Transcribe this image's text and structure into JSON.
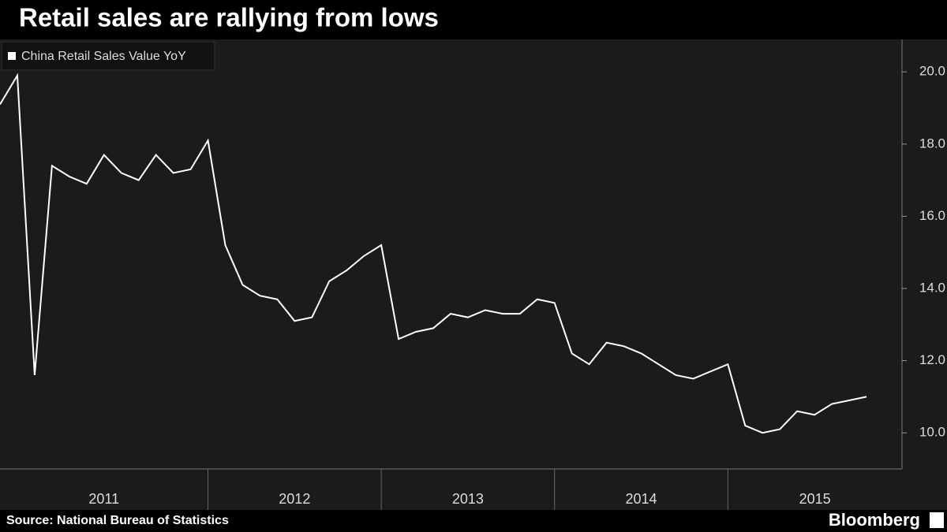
{
  "chart_data": {
    "type": "line",
    "title": "Retail sales are rallying from lows",
    "source": "Source: National Bureau of Statistics",
    "brand": "Bloomberg",
    "year_labels": [
      "2011",
      "2012",
      "2013",
      "2014",
      "2015"
    ],
    "series": [
      {
        "name": "China Retail Sales Value YoY",
        "color": "#ffffff",
        "values": [
          19.1,
          19.9,
          11.6,
          17.4,
          17.1,
          16.9,
          17.7,
          17.2,
          17.0,
          17.7,
          17.2,
          17.3,
          18.1,
          15.2,
          14.1,
          13.8,
          13.7,
          13.1,
          13.2,
          14.2,
          14.5,
          14.9,
          15.2,
          12.6,
          12.8,
          12.9,
          13.3,
          13.2,
          13.4,
          13.3,
          13.3,
          13.7,
          13.6,
          12.2,
          11.9,
          12.5,
          12.4,
          12.2,
          11.9,
          11.6,
          11.5,
          11.7,
          11.9,
          10.2,
          10.0,
          10.1,
          10.6,
          10.5,
          10.8,
          10.9,
          11.0
        ]
      }
    ],
    "ylim": [
      9.0,
      20.9
    ],
    "yticks": [
      {
        "value": 10,
        "label": "10.0"
      },
      {
        "value": 12,
        "label": "12.0"
      },
      {
        "value": 14,
        "label": "14.0"
      },
      {
        "value": 16,
        "label": "16.0"
      },
      {
        "value": 18,
        "label": "18.0"
      },
      {
        "value": 20,
        "label": "20.0"
      }
    ],
    "legend": "top-left"
  }
}
